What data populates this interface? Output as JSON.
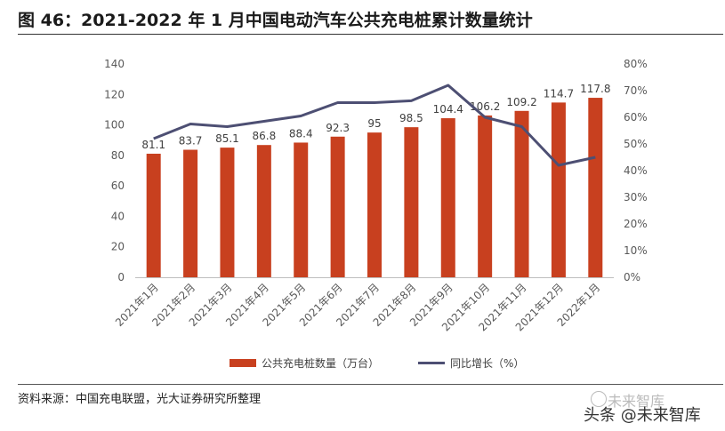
{
  "header": {
    "title": "图 46：2021-2022 年 1 月中国电动汽车公共充电桩累计数量统计"
  },
  "footer": {
    "source": "资料来源：中国充电联盟，光大证券研究所整理",
    "watermark_top": "未来智库",
    "watermark": "头条 @未来智库"
  },
  "colors": {
    "bar": "#C8401F",
    "line": "#4D4F73"
  },
  "chart_data": {
    "type": "bar+line",
    "categories": [
      "2021年1月",
      "2021年2月",
      "2021年3月",
      "2021年4月",
      "2021年5月",
      "2021年6月",
      "2021年7月",
      "2021年8月",
      "2021年9月",
      "2021年10月",
      "2021年11月",
      "2021年12月",
      "2022年1月"
    ],
    "series": [
      {
        "name": "公共充电桩数量（万台）",
        "type": "bar",
        "axis": "left",
        "values": [
          81.1,
          83.7,
          85.1,
          86.8,
          88.4,
          92.3,
          95,
          98.5,
          104.4,
          106.2,
          109.2,
          114.7,
          117.8
        ]
      },
      {
        "name": "同比增长（%）",
        "type": "line",
        "axis": "right",
        "values": [
          52,
          57.5,
          56.5,
          58.5,
          60.5,
          65.5,
          65.5,
          66.2,
          72,
          60,
          56.5,
          42,
          45
        ]
      }
    ],
    "left_axis": {
      "min": 0,
      "max": 140,
      "ticks": [
        "0",
        "20",
        "40",
        "60",
        "80",
        "100",
        "120",
        "140"
      ]
    },
    "right_axis": {
      "min": 0,
      "max": 80,
      "ticks": [
        "0%",
        "10%",
        "20%",
        "30%",
        "40%",
        "50%",
        "60%",
        "70%",
        "80%"
      ]
    },
    "legend": {
      "position": "bottom-center"
    }
  }
}
